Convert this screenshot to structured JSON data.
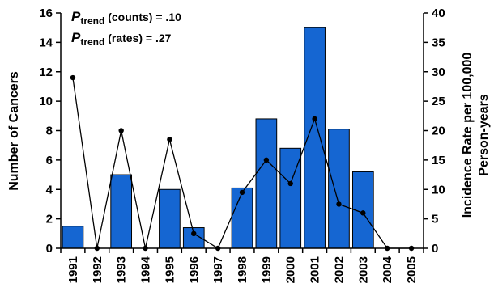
{
  "chart_data": {
    "type": "bar+line",
    "categories": [
      "1991",
      "1992",
      "1993",
      "1994",
      "1995",
      "1996",
      "1997",
      "1998",
      "1999",
      "2000",
      "2001",
      "2002",
      "2003",
      "2004",
      "2005"
    ],
    "series": [
      {
        "name": "Number of Cancers",
        "type": "bar",
        "axis": "left",
        "values": [
          1.5,
          0,
          5,
          0,
          4,
          1.4,
          0,
          4.1,
          8.8,
          6.8,
          15,
          8.1,
          5.2,
          0,
          0
        ]
      },
      {
        "name": "Incidence Rate per 100,000 Person-years",
        "type": "line",
        "axis": "right",
        "values": [
          29,
          0,
          20,
          0,
          18.5,
          2.5,
          0,
          9.5,
          15,
          11,
          22,
          7.5,
          6,
          0,
          0
        ]
      }
    ],
    "ylabel_left": "Number of Cancers",
    "ylabel_right_line1": "Incidence Rate per 100,000",
    "ylabel_right_line2": "Person-years",
    "ylim_left": [
      0,
      16
    ],
    "ylim_right": [
      0,
      40
    ],
    "yticks_left": [
      0,
      2,
      4,
      6,
      8,
      10,
      12,
      14,
      16
    ],
    "yticks_right": [
      0,
      5,
      10,
      15,
      20,
      25,
      30,
      35,
      40
    ],
    "annotations": [
      {
        "p": "P",
        "sub": "trend",
        "text": " (counts) = .10"
      },
      {
        "p": "P",
        "sub": "trend",
        "text": " (rates) = .27"
      }
    ],
    "colors": {
      "bar": "#1566d2",
      "bar_edge": "#000000",
      "line": "#000000"
    }
  }
}
